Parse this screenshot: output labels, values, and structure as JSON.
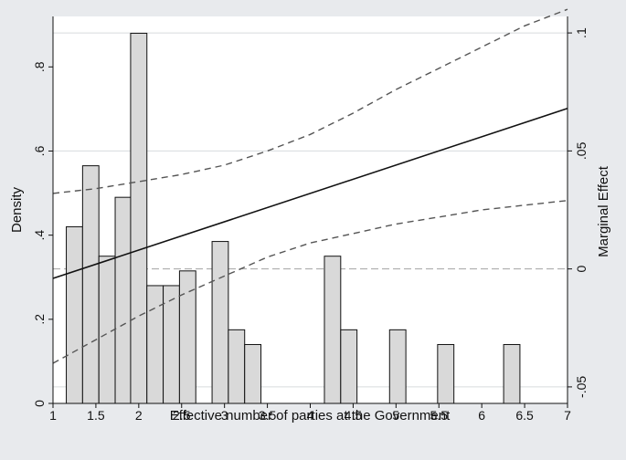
{
  "chart_data": {
    "type": "bar",
    "xlabel": "Effective number of parties at the Government",
    "ylabel": "Density",
    "y2label": "Marginal Effect",
    "xlim": [
      1,
      7
    ],
    "ylim": [
      0,
      0.92
    ],
    "y2lim": [
      -0.057,
      0.107
    ],
    "x_ticks": [
      "1",
      "1.5",
      "2",
      "2.5",
      "3",
      "3.5",
      "4",
      "4.5",
      "5",
      "5.5",
      "6",
      "6.5",
      "7"
    ],
    "y_ticks": [
      "0",
      ".2",
      ".4",
      ".6",
      ".8"
    ],
    "y2_ticks": [
      "-.05",
      "0",
      ".05",
      ".1"
    ],
    "grid": "horizontal",
    "histogram": {
      "bin_width": 0.19,
      "bins": [
        {
          "x": 1.25,
          "density": 0.42
        },
        {
          "x": 1.44,
          "density": 0.565
        },
        {
          "x": 1.63,
          "density": 0.35
        },
        {
          "x": 1.82,
          "density": 0.49
        },
        {
          "x": 2.0,
          "density": 0.88
        },
        {
          "x": 2.19,
          "density": 0.28
        },
        {
          "x": 2.38,
          "density": 0.28
        },
        {
          "x": 2.57,
          "density": 0.315
        },
        {
          "x": 2.95,
          "density": 0.385
        },
        {
          "x": 3.14,
          "density": 0.175
        },
        {
          "x": 3.33,
          "density": 0.14
        },
        {
          "x": 4.26,
          "density": 0.35
        },
        {
          "x": 4.45,
          "density": 0.175
        },
        {
          "x": 5.02,
          "density": 0.175
        },
        {
          "x": 5.58,
          "density": 0.14
        },
        {
          "x": 6.35,
          "density": 0.14
        }
      ]
    },
    "series": [
      {
        "values": [
          [
            1.0,
            -0.004
          ],
          [
            7.0,
            0.068
          ]
        ]
      },
      {
        "values": [
          [
            1.0,
            0.032
          ],
          [
            1.5,
            0.034
          ],
          [
            2.0,
            0.037
          ],
          [
            2.5,
            0.04
          ],
          [
            3.0,
            0.044
          ],
          [
            3.5,
            0.05
          ],
          [
            4.0,
            0.057
          ],
          [
            4.5,
            0.066
          ],
          [
            5.0,
            0.076
          ],
          [
            5.5,
            0.085
          ],
          [
            6.0,
            0.094
          ],
          [
            6.5,
            0.103
          ],
          [
            7.0,
            0.11
          ]
        ]
      },
      {
        "values": [
          [
            1.0,
            -0.04
          ],
          [
            1.5,
            -0.03
          ],
          [
            2.0,
            -0.02
          ],
          [
            2.5,
            -0.011
          ],
          [
            3.0,
            -0.003
          ],
          [
            3.5,
            0.005
          ],
          [
            4.0,
            0.011
          ],
          [
            4.5,
            0.015
          ],
          [
            5.0,
            0.019
          ],
          [
            5.5,
            0.022
          ],
          [
            6.0,
            0.025
          ],
          [
            6.5,
            0.027
          ],
          [
            7.0,
            0.029
          ]
        ]
      }
    ]
  },
  "colors": {
    "background": "#e8eaed",
    "plot_background": "#ffffff",
    "bar_fill": "#d9d9d9",
    "bar_stroke": "#111111",
    "line": "#111111",
    "ci": "#555555",
    "grid": "#d7dbde",
    "zero_line": "#a3a3a3"
  }
}
